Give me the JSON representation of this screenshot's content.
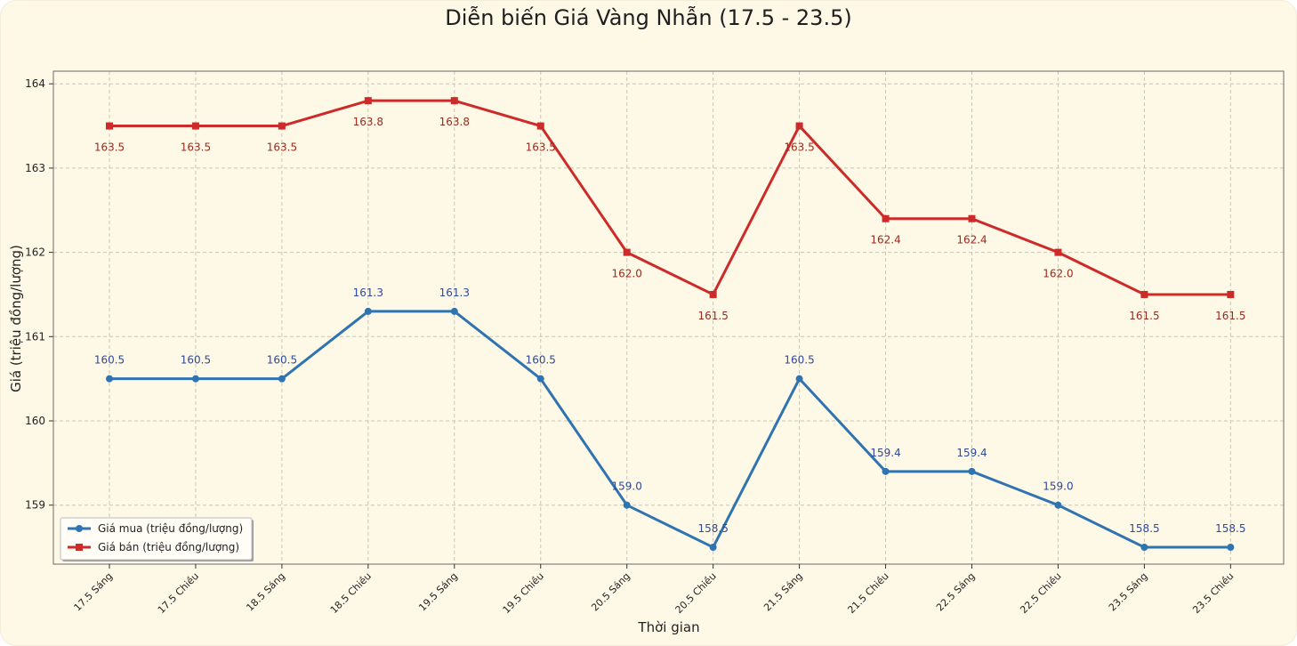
{
  "chart_data": {
    "type": "line",
    "title": "Diễn biến Giá Vàng Nhẫn (17.5 - 23.5)",
    "xlabel": "Thời gian",
    "ylabel": "Giá (triệu đồng/lượng)",
    "categories": [
      "17.5 Sáng",
      "17.5 Chiều",
      "18.5 Sáng",
      "18.5 Chiều",
      "19.5 Sáng",
      "19.5 Chiều",
      "20.5 Sáng",
      "20.5 Chiều",
      "21.5 Sáng",
      "21.5 Chiều",
      "22.5 Sáng",
      "22.5 Chiều",
      "23.5 Sáng",
      "23.5 Chiều"
    ],
    "yticks": [
      159,
      160,
      161,
      162,
      163,
      164
    ],
    "ylim": [
      158.3,
      164.15
    ],
    "grid": true,
    "legend_position": "lower-left",
    "series": [
      {
        "name": "Giá mua (triệu đồng/lượng)",
        "color": "#2f74b0",
        "label_color": "#2e4a9a",
        "marker": "circle",
        "label_position": "above",
        "values": [
          160.5,
          160.5,
          160.5,
          161.3,
          161.3,
          160.5,
          159.0,
          158.5,
          160.5,
          159.4,
          159.4,
          159.0,
          158.5,
          158.5
        ],
        "labels": [
          "160.5",
          "160.5",
          "160.5",
          "161.3",
          "161.3",
          "160.5",
          "159.0",
          "158.5",
          "160.5",
          "159.4",
          "159.4",
          "159.0",
          "158.5",
          "158.5"
        ]
      },
      {
        "name": "Giá bán (triệu đồng/lượng)",
        "color": "#cc2b29",
        "label_color": "#9a2a1e",
        "marker": "square",
        "label_position": "below",
        "values": [
          163.5,
          163.5,
          163.5,
          163.8,
          163.8,
          163.5,
          162.0,
          161.5,
          163.5,
          162.4,
          162.4,
          162.0,
          161.5,
          161.5
        ],
        "labels": [
          "163.5",
          "163.5",
          "163.5",
          "163.8",
          "163.8",
          "163.5",
          "162.0",
          "161.5",
          "163.5",
          "162.4",
          "162.4",
          "162.0",
          "161.5",
          "161.5"
        ]
      }
    ]
  }
}
